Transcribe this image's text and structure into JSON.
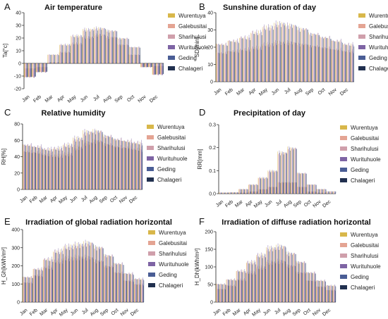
{
  "colors": [
    "#d8b74a",
    "#e4a493",
    "#cf9fab",
    "#7e64a4",
    "#4a5d95",
    "#21304f"
  ],
  "chart_data": [
    {
      "type": "bar",
      "letter": "A",
      "title": "Air temperature",
      "ylabel": "Ta[°c]",
      "ylim": [
        -20,
        40
      ],
      "yticks": [
        -20,
        -10,
        0,
        10,
        20,
        30,
        40
      ],
      "categories": [
        "Jan",
        "Feb",
        "Mar",
        "Apr",
        "May",
        "Jun",
        "Jul",
        "Aug",
        "Sep",
        "Oct",
        "Nov",
        "Dec"
      ],
      "legend": [
        "Wurentuya",
        "Galebusitai",
        "Sharihulusi",
        "Wurituhuole",
        "Geding",
        "Chalageri"
      ],
      "monthly": [
        -11,
        -7,
        1,
        9,
        16,
        21,
        23,
        21,
        15,
        7,
        -3,
        -9
      ],
      "err_up": [
        -4,
        -3,
        7,
        15,
        22,
        27,
        28,
        26,
        20,
        13,
        3,
        -2
      ]
    },
    {
      "type": "bar",
      "letter": "B",
      "title": "Sunshine duration of day",
      "ylabel": "SD[min]",
      "ylim": [
        0,
        40
      ],
      "yticks": [
        0,
        10,
        20,
        30,
        40
      ],
      "categories": [
        "Jan",
        "Feb",
        "Mar",
        "Apr",
        "May",
        "Jun",
        "Jul",
        "Aug",
        "Sep",
        "Oct",
        "Nov",
        "Dec"
      ],
      "legend": [
        "Wurentuya",
        "Galebusitai",
        "Sharihulusi",
        "Wurituhuole",
        "Geding",
        "Chalageri"
      ],
      "monthly": [
        17,
        18,
        19,
        20,
        22,
        23,
        23,
        22,
        21,
        20,
        19,
        18
      ],
      "err_up": [
        22,
        24,
        26,
        29,
        32,
        34,
        33,
        31,
        28,
        26,
        24,
        22
      ]
    },
    {
      "type": "bar",
      "letter": "C",
      "title": "Relative humidity",
      "ylabel": "RH[%]",
      "ylim": [
        0,
        80
      ],
      "yticks": [
        0,
        20,
        40,
        60,
        80
      ],
      "categories": [
        "Jan",
        "Feb",
        "Mar",
        "Apr",
        "May",
        "Jun",
        "Jul",
        "Aug",
        "Sep",
        "Oct",
        "Nov",
        "Dec"
      ],
      "legend": [
        "Wurentuya",
        "Galebusitai",
        "Sharihulusi",
        "Wurituhuole",
        "Geding",
        "Chalageri"
      ],
      "monthly": [
        47,
        46,
        43,
        42,
        44,
        52,
        58,
        60,
        56,
        53,
        52,
        50
      ],
      "err_up": [
        55,
        53,
        50,
        51,
        55,
        63,
        71,
        72,
        66,
        62,
        60,
        58
      ]
    },
    {
      "type": "bar",
      "letter": "D",
      "title": "Precipitation of day",
      "ylabel": "RR[mm]",
      "ylim": [
        0,
        0.3
      ],
      "yticks": [
        0.0,
        0.1,
        0.2,
        0.3
      ],
      "categories": [
        "Jan",
        "Feb",
        "Mar",
        "Apr",
        "May",
        "Jun",
        "Jul",
        "Aug",
        "Sep",
        "Oct",
        "Nov",
        "Dec"
      ],
      "legend": [
        "Wurentuya",
        "Galebusitai",
        "Sharihulusi",
        "Wurituhuole",
        "Geding",
        "Chalageri"
      ],
      "monthly": [
        0.002,
        0.002,
        0.005,
        0.01,
        0.02,
        0.03,
        0.05,
        0.05,
        0.03,
        0.01,
        0.005,
        0.002
      ],
      "err_up": [
        0.005,
        0.006,
        0.02,
        0.04,
        0.07,
        0.1,
        0.18,
        0.2,
        0.09,
        0.04,
        0.02,
        0.01
      ]
    },
    {
      "type": "bar",
      "letter": "E",
      "title": "Irradiation of global radiation horizontal",
      "ylabel": "H_Gh[kWh/m²]",
      "ylim": [
        0,
        400
      ],
      "yticks": [
        0,
        100,
        200,
        300,
        400
      ],
      "categories": [
        "Jan",
        "Feb",
        "Mar",
        "Apr",
        "May",
        "Jun",
        "Jul",
        "Aug",
        "Sep",
        "Oct",
        "Nov",
        "Dec"
      ],
      "legend": [
        "Wurentuya",
        "Galebusitai",
        "Sharihulusi",
        "Wurituhuole",
        "Geding",
        "Chalageri"
      ],
      "monthly": [
        110,
        150,
        195,
        230,
        245,
        250,
        250,
        230,
        200,
        165,
        120,
        100
      ],
      "err_up": [
        140,
        185,
        240,
        285,
        310,
        320,
        330,
        305,
        260,
        215,
        160,
        130
      ]
    },
    {
      "type": "bar",
      "letter": "F",
      "title": "Irradiation of diffuse radiation horizontal",
      "ylabel": "H_Dh[kWh/m²]",
      "ylim": [
        0,
        200
      ],
      "yticks": [
        0,
        50,
        100,
        150,
        200
      ],
      "categories": [
        "Jan",
        "Feb",
        "Mar",
        "Apr",
        "May",
        "Jun",
        "Jul",
        "Aug",
        "Sep",
        "Oct",
        "Nov",
        "Dec"
      ],
      "legend": [
        "Wurentuya",
        "Galebusitai",
        "Sharihulusi",
        "Wurituhuole",
        "Geding",
        "Chalageri"
      ],
      "monthly": [
        38,
        48,
        65,
        85,
        100,
        115,
        118,
        105,
        85,
        62,
        45,
        35
      ],
      "err_up": [
        52,
        65,
        90,
        115,
        135,
        155,
        160,
        140,
        115,
        85,
        62,
        48
      ]
    }
  ]
}
